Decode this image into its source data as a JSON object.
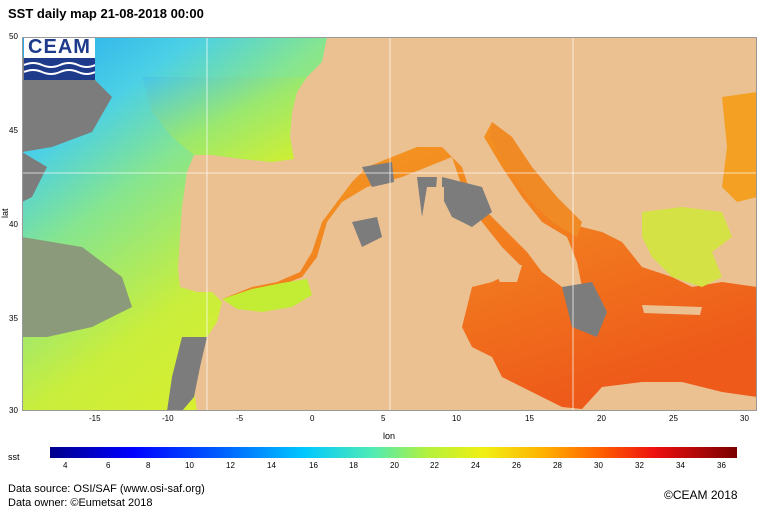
{
  "title": "SST daily map 21-08-2018  00:00",
  "logo": {
    "text": "CEAM",
    "icon": "ceam-waves-logo"
  },
  "axes": {
    "ylabel": "lat",
    "xlabel": "lon",
    "yticks": [
      "50",
      "45",
      "40",
      "35",
      "30"
    ],
    "xticks": [
      "-15",
      "-10",
      "-5",
      "0",
      "5",
      "10",
      "15",
      "20",
      "25",
      "30"
    ]
  },
  "colorbar": {
    "label": "sst",
    "ticks": [
      "4",
      "6",
      "8",
      "10",
      "12",
      "14",
      "16",
      "18",
      "20",
      "22",
      "24",
      "26",
      "28",
      "30",
      "32",
      "34",
      "36"
    ]
  },
  "footer": {
    "source": "Data source: OSI/SAF (www.osi-saf.org)",
    "owner": "Data owner: ©Eumetsat 2018",
    "copyright": "©CEAM 2018"
  },
  "colors": {
    "land": "#ebc192",
    "nodata": "#7c7c7c",
    "atlantic_cool": "#33b7f0",
    "atlantic_warm": "#c8ed2e",
    "med_warm": "#f38a21",
    "med_hot": "#ef5f1c"
  }
}
